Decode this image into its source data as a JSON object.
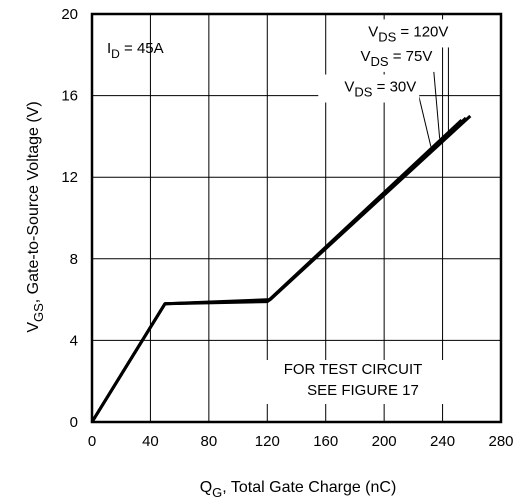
{
  "chart_data": {
    "type": "line",
    "xlabel": {
      "main": "Q",
      "sub": "G",
      "rest": ", Total Gate Charge (nC)"
    },
    "ylabel": {
      "main": "V",
      "sub": "GS",
      "rest": ", Gate-to-Source Voltage (V)"
    },
    "xlim": [
      0,
      280
    ],
    "ylim": [
      0,
      20
    ],
    "xticks": [
      0,
      40,
      80,
      120,
      160,
      200,
      240,
      280
    ],
    "yticks": [
      0,
      4,
      8,
      12,
      16,
      20
    ],
    "grid": true,
    "series": [
      {
        "name": "VDS = 30V",
        "x": [
          0,
          50,
          120,
          253
        ],
        "y": [
          0,
          5.8,
          5.9,
          14.8
        ]
      },
      {
        "name": "VDS = 75V",
        "x": [
          0,
          50,
          121,
          256
        ],
        "y": [
          0,
          5.8,
          5.95,
          14.9
        ]
      },
      {
        "name": "VDS = 120V",
        "x": [
          0,
          50,
          122,
          259
        ],
        "y": [
          0,
          5.8,
          6.0,
          15.0
        ]
      }
    ],
    "legend_labels": [
      {
        "main": "V",
        "sub": "DS",
        "rest": " = 120V"
      },
      {
        "main": "V",
        "sub": "DS",
        "rest": " = 75V"
      },
      {
        "main": "V",
        "sub": "DS",
        "rest": " = 30V"
      }
    ],
    "legend_pointers": [
      {
        "label_x": 244,
        "label_y": 18.9,
        "target_x": 244,
        "target_y": 14.2
      },
      {
        "label_x": 233,
        "label_y": 17.7,
        "target_x": 238,
        "target_y": 13.9
      },
      {
        "label_x": 222,
        "label_y": 16.2,
        "target_x": 232,
        "target_y": 13.5
      }
    ],
    "annotations": {
      "id": {
        "main": "I",
        "sub": "D",
        "rest": " = 45A"
      },
      "note_line1": "FOR TEST CIRCUIT",
      "note_line2": "SEE FIGURE 17"
    }
  }
}
